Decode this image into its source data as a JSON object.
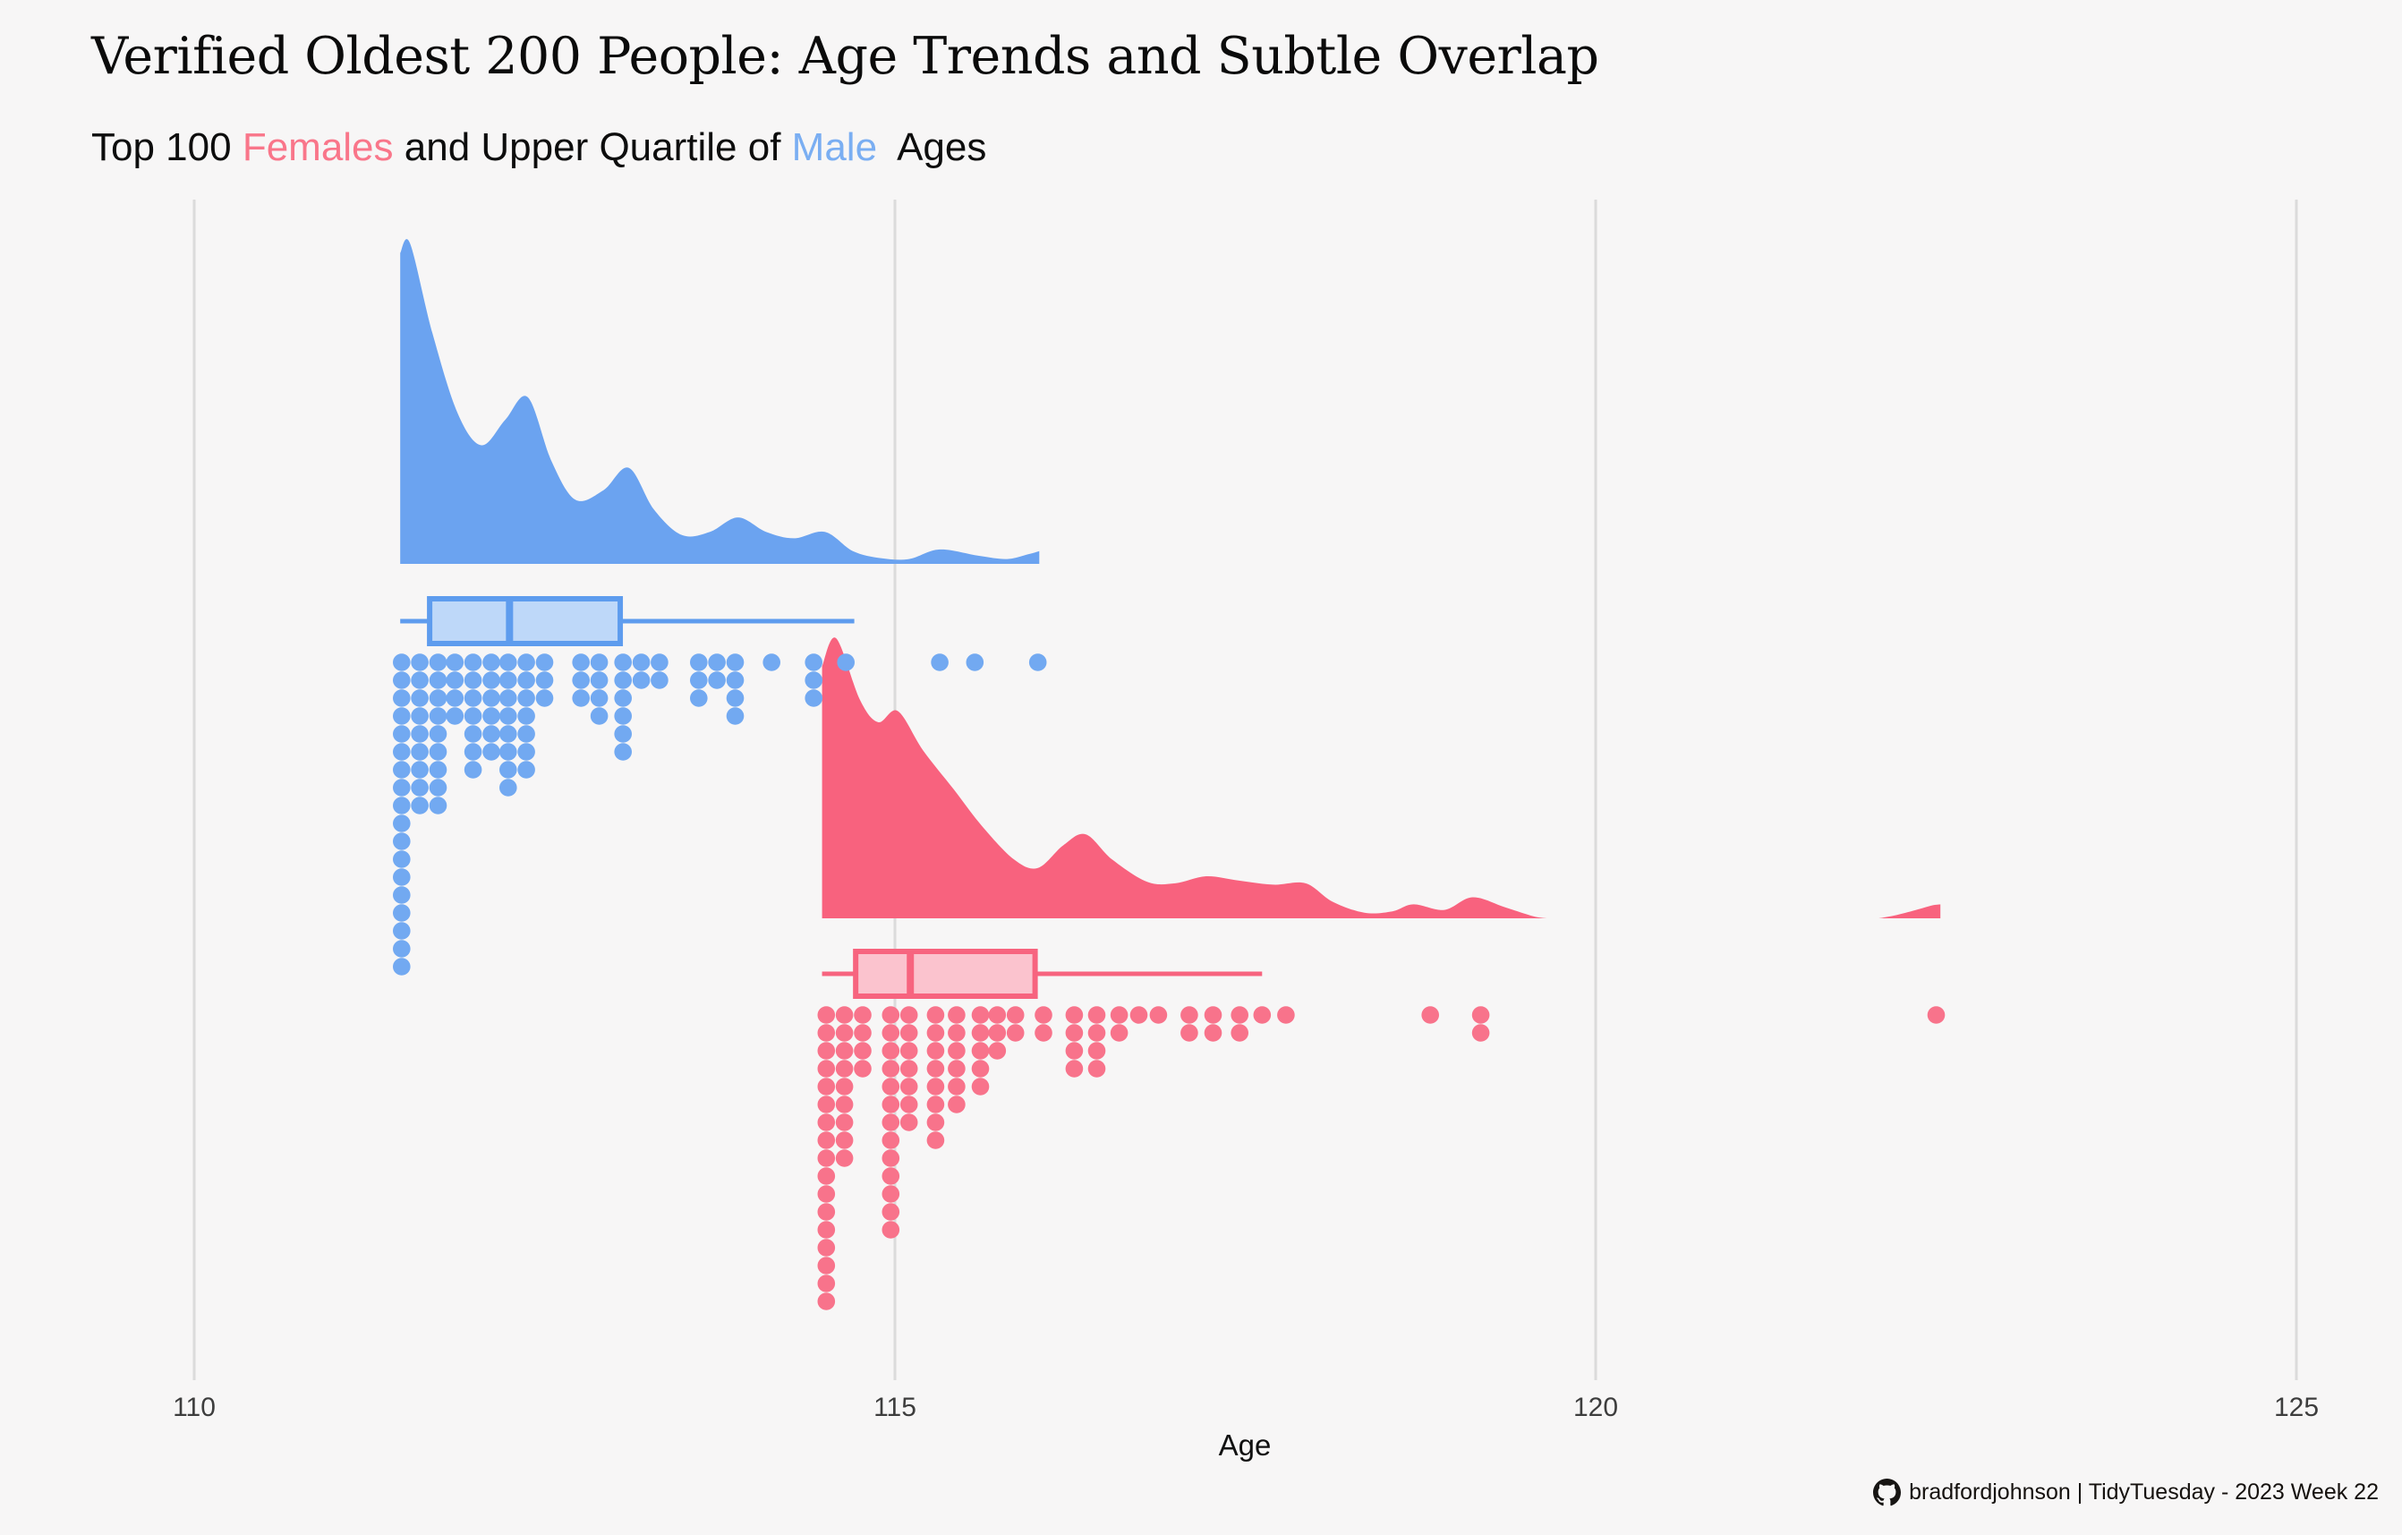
{
  "title": "Verified Oldest 200 People: Age Trends and Subtle Overlap",
  "subtitle_parts": [
    {
      "text": "Top 100 ",
      "color": null
    },
    {
      "text": "Females",
      "color": "#F9768A"
    },
    {
      "text": " and Upper Quartile of ",
      "color": null
    },
    {
      "text": "Male",
      "color": "#7AAEF2"
    },
    {
      "text": "  Ages",
      "color": null
    }
  ],
  "axis": {
    "label": "Age",
    "ticks": [
      "110",
      "115",
      "120",
      "125"
    ],
    "tick_values": [
      110,
      115,
      120,
      125
    ]
  },
  "caption": {
    "icon": "github-icon",
    "text": "bradfordjohnson | TidyTuesday - 2023 Week 22"
  },
  "colors": {
    "background": "#F7F6F6",
    "gridline": "#DBDBDB",
    "male_density": "#6BA3F0",
    "male_dot": "#72A9F1",
    "male_box_fill": "#BED8F9",
    "male_box_stroke": "#5E9CEE",
    "female_density": "#F8627E",
    "female_dot": "#F8738B",
    "female_box_fill": "#FBC3CE",
    "female_box_stroke": "#F7647F"
  },
  "chart_data": {
    "type": "raincloud (half-eye density + boxplot + stacked dot plot), two groups on shared x axis",
    "xlabel": "Age",
    "xlim": [
      110,
      125.75
    ],
    "x_ticks": [
      110,
      115,
      120,
      125
    ],
    "grid": "vertical major gridlines only",
    "legend": "none (group colors referenced in subtitle text)",
    "series": [
      {
        "name": "Male",
        "group_color": "#6BA3F0",
        "n_dots": 105,
        "density": {
          "cut_left": true,
          "cut_right": true,
          "points": [
            [
              111.47,
              0.97
            ],
            [
              111.54,
              1.0
            ],
            [
              111.7,
              0.72
            ],
            [
              111.88,
              0.47
            ],
            [
              112.05,
              0.37
            ],
            [
              112.22,
              0.45
            ],
            [
              112.38,
              0.52
            ],
            [
              112.55,
              0.32
            ],
            [
              112.72,
              0.2
            ],
            [
              112.92,
              0.23
            ],
            [
              113.1,
              0.3
            ],
            [
              113.28,
              0.17
            ],
            [
              113.48,
              0.09
            ],
            [
              113.68,
              0.1
            ],
            [
              113.88,
              0.145
            ],
            [
              114.08,
              0.1
            ],
            [
              114.28,
              0.08
            ],
            [
              114.5,
              0.1
            ],
            [
              114.7,
              0.04
            ],
            [
              114.9,
              0.018
            ],
            [
              115.1,
              0.015
            ],
            [
              115.32,
              0.045
            ],
            [
              115.6,
              0.025
            ],
            [
              115.8,
              0.015
            ],
            [
              115.95,
              0.03
            ],
            [
              116.03,
              0.04
            ]
          ]
        },
        "boxplot": {
          "whisker_low": 111.47,
          "q1": 111.68,
          "median": 112.25,
          "q3": 113.04,
          "whisker_high": 114.71
        },
        "dots_age_count": [
          [
            111.48,
            18
          ],
          [
            111.61,
            9
          ],
          [
            111.74,
            9
          ],
          [
            111.86,
            4
          ],
          [
            111.99,
            7
          ],
          [
            112.12,
            6
          ],
          [
            112.24,
            8
          ],
          [
            112.37,
            7
          ],
          [
            112.5,
            3
          ],
          [
            112.76,
            3
          ],
          [
            112.89,
            4
          ],
          [
            113.06,
            6
          ],
          [
            113.19,
            2
          ],
          [
            113.32,
            2
          ],
          [
            113.6,
            3
          ],
          [
            113.73,
            2
          ],
          [
            113.86,
            4
          ],
          [
            114.12,
            1
          ],
          [
            114.42,
            3
          ],
          [
            114.65,
            1
          ],
          [
            115.32,
            1
          ],
          [
            115.57,
            1
          ],
          [
            116.02,
            1
          ]
        ]
      },
      {
        "name": "Female",
        "group_color": "#F8627E",
        "n_dots": 100,
        "density_segments": [
          {
            "cut_left": true,
            "cut_right": false,
            "points": [
              [
                114.48,
                0.9
              ],
              [
                114.58,
                1.0
              ],
              [
                114.75,
                0.78
              ],
              [
                114.88,
                0.7
              ],
              [
                115.02,
                0.74
              ],
              [
                115.2,
                0.6
              ],
              [
                115.42,
                0.46
              ],
              [
                115.62,
                0.33
              ],
              [
                115.85,
                0.21
              ],
              [
                116.02,
                0.18
              ],
              [
                116.2,
                0.26
              ],
              [
                116.36,
                0.3
              ],
              [
                116.55,
                0.21
              ],
              [
                116.8,
                0.13
              ],
              [
                117.0,
                0.125
              ],
              [
                117.22,
                0.15
              ],
              [
                117.45,
                0.135
              ],
              [
                117.7,
                0.12
              ],
              [
                117.93,
                0.125
              ],
              [
                118.12,
                0.06
              ],
              [
                118.35,
                0.02
              ],
              [
                118.55,
                0.025
              ],
              [
                118.7,
                0.05
              ],
              [
                118.92,
                0.03
              ],
              [
                119.12,
                0.075
              ],
              [
                119.35,
                0.04
              ],
              [
                119.55,
                0.008
              ],
              [
                119.65,
                0
              ]
            ]
          },
          {
            "cut_left": false,
            "cut_right": true,
            "points": [
              [
                122.02,
                0
              ],
              [
                122.15,
                0.012
              ],
              [
                122.3,
                0.032
              ],
              [
                122.4,
                0.046
              ],
              [
                122.46,
                0.05
              ]
            ]
          }
        ],
        "boxplot": {
          "whisker_low": 114.48,
          "q1": 114.72,
          "median": 115.11,
          "q3": 116.0,
          "whisker_high": 117.62
        },
        "dots_age_count": [
          [
            114.51,
            17
          ],
          [
            114.64,
            9
          ],
          [
            114.77,
            4
          ],
          [
            114.97,
            13
          ],
          [
            115.1,
            7
          ],
          [
            115.29,
            8
          ],
          [
            115.44,
            6
          ],
          [
            115.61,
            5
          ],
          [
            115.73,
            3
          ],
          [
            115.86,
            2
          ],
          [
            116.06,
            2
          ],
          [
            116.28,
            4
          ],
          [
            116.44,
            4
          ],
          [
            116.6,
            2
          ],
          [
            116.74,
            1
          ],
          [
            116.88,
            1
          ],
          [
            117.1,
            2
          ],
          [
            117.27,
            2
          ],
          [
            117.46,
            2
          ],
          [
            117.62,
            1
          ],
          [
            117.79,
            1
          ],
          [
            118.82,
            1
          ],
          [
            119.18,
            2
          ],
          [
            122.43,
            1
          ]
        ]
      }
    ]
  }
}
